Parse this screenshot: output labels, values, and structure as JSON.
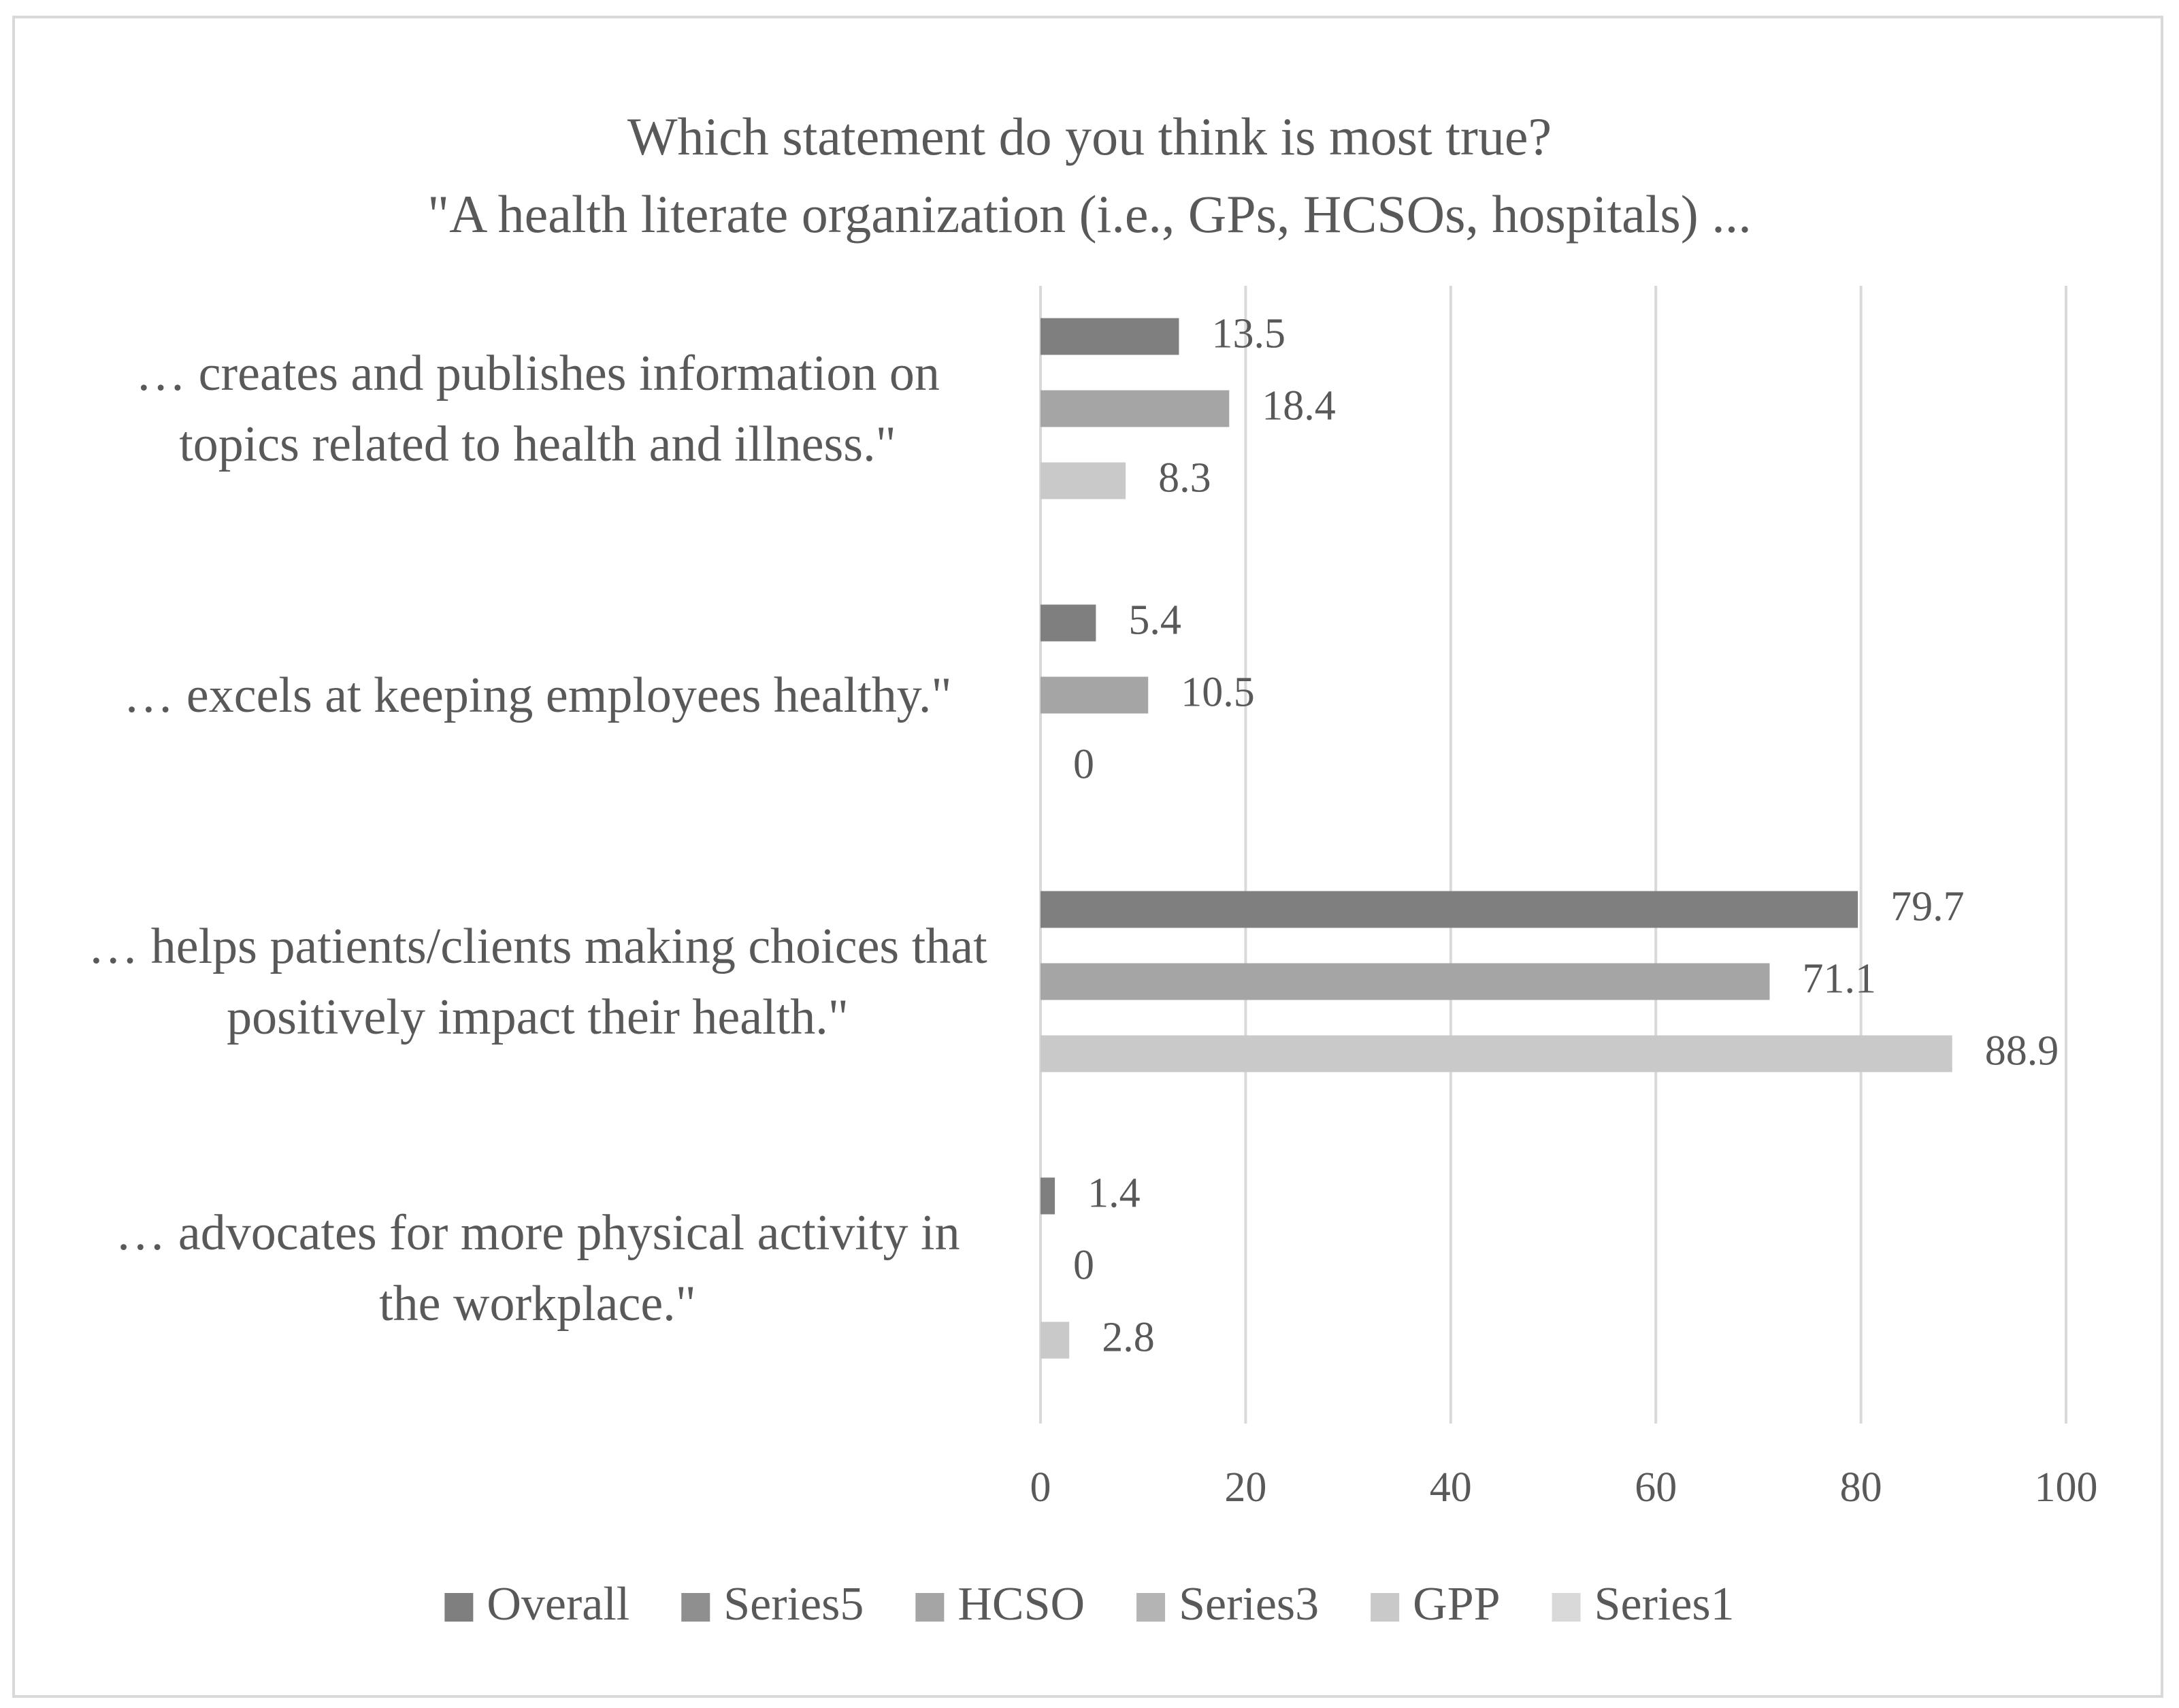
{
  "chart_data": {
    "type": "hbar",
    "title": "Which statement do you think is most true?",
    "subtitle": "\"A health literate organization (i.e., GPs, HCSOs, hospitals) ...",
    "categories": [
      "… creates and publishes information on topics related to health and illness.\"",
      "… excels at keeping employees healthy.\"",
      "… helps patients/clients making choices that positively impact their health.\"",
      "… advocates for more physical activity in the workplace.\""
    ],
    "series": [
      {
        "name": "Overall",
        "color": "#7f7f7f",
        "values": [
          13.5,
          5.4,
          79.7,
          1.4
        ]
      },
      {
        "name": "Series5",
        "color": "#8f8f8f",
        "values": [
          null,
          null,
          null,
          null
        ]
      },
      {
        "name": "HCSO",
        "color": "#a5a5a5",
        "values": [
          18.4,
          10.5,
          71.1,
          0
        ]
      },
      {
        "name": "Series3",
        "color": "#b4b4b4",
        "values": [
          null,
          null,
          null,
          null
        ]
      },
      {
        "name": "GPP",
        "color": "#c9c9c9",
        "values": [
          8.3,
          0,
          88.9,
          2.8
        ]
      },
      {
        "name": "Series1",
        "color": "#d9d9d9",
        "values": [
          null,
          null,
          null,
          null
        ]
      }
    ],
    "xlim": [
      0,
      100
    ],
    "xticks": [
      0,
      20,
      40,
      60,
      80,
      100
    ],
    "grid": true,
    "legend": "bottom"
  }
}
